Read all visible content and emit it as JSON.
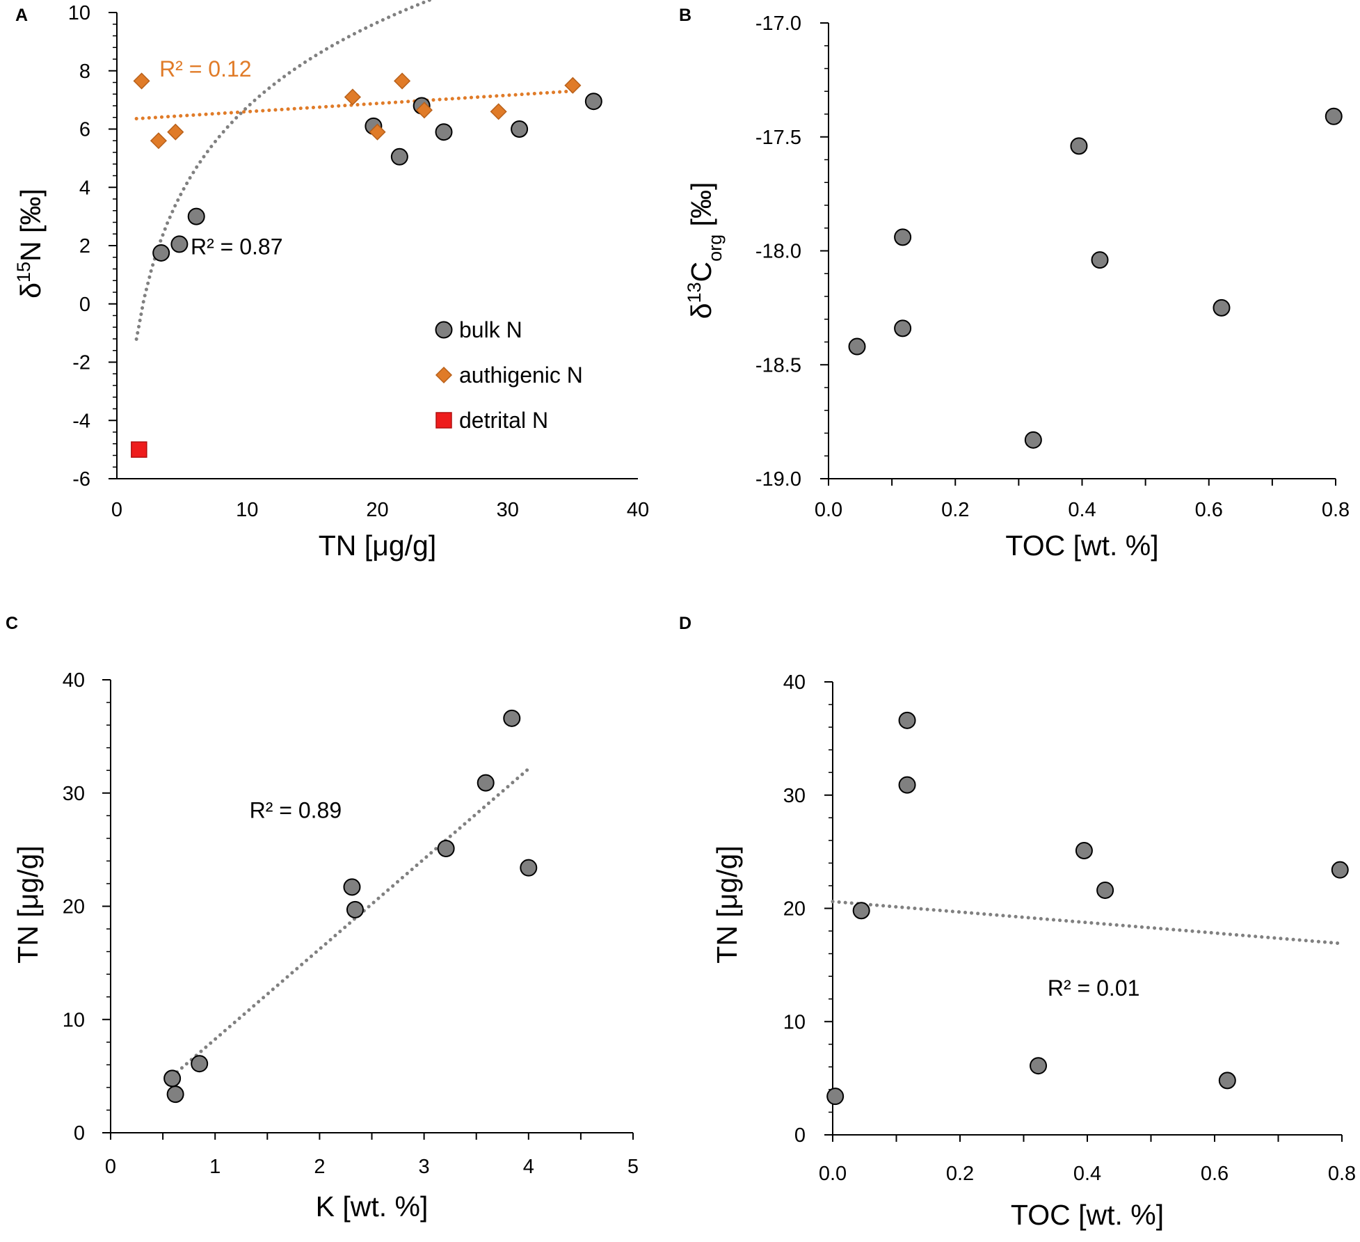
{
  "chart_data": [
    {
      "panel_label": "A",
      "type": "scatter",
      "xlabel": "TN [μg/g]",
      "ylabel": {
        "prefix": "δ",
        "sup": "15",
        "main": "N [‰]"
      },
      "xlim": [
        0,
        40
      ],
      "ylim": [
        -6,
        10
      ],
      "xticks": [
        0,
        10,
        20,
        30,
        40
      ],
      "yticks": [
        -6,
        -4,
        -2,
        0,
        2,
        4,
        6,
        8,
        10
      ],
      "xtick_labels": [
        "0",
        "10",
        "20",
        "30",
        "40"
      ],
      "ytick_labels": [
        "-6",
        "-4",
        "-2",
        "0",
        "2",
        "4",
        "6",
        "8",
        "10"
      ],
      "grid": false,
      "legend_position": "bottom-right",
      "series": [
        {
          "name": "bulk N",
          "marker": "circle",
          "color": "#808080",
          "points": [
            [
              3.4,
              1.75
            ],
            [
              4.8,
              2.05
            ],
            [
              6.1,
              3.0
            ],
            [
              19.7,
              6.1
            ],
            [
              21.7,
              5.05
            ],
            [
              23.4,
              6.8
            ],
            [
              25.1,
              5.9
            ],
            [
              30.9,
              6.0
            ],
            [
              36.6,
              6.95
            ]
          ]
        },
        {
          "name": "authigenic N",
          "marker": "diamond",
          "color": "#e07b28",
          "points": [
            [
              1.9,
              7.65
            ],
            [
              3.2,
              5.6
            ],
            [
              4.5,
              5.9
            ],
            [
              18.1,
              7.1
            ],
            [
              20.0,
              5.9
            ],
            [
              21.9,
              7.65
            ],
            [
              23.6,
              6.65
            ],
            [
              29.3,
              6.6
            ],
            [
              35.0,
              7.5
            ]
          ]
        },
        {
          "name": "detrital N",
          "marker": "square",
          "color": "#ee1c1c",
          "points": [
            [
              1.7,
              -5.0
            ]
          ]
        }
      ],
      "trendlines": [
        {
          "kind": "log",
          "a": 4.196,
          "b": 2.91,
          "x_range": [
            1.5,
            36.6
          ],
          "color": "#808080",
          "label": "R² = 0.87",
          "label_at": [
            9.2,
            1.7
          ]
        },
        {
          "kind": "linear",
          "slope": 0.0282,
          "intercept": 6.315,
          "x_range": [
            1.5,
            35.0
          ],
          "color": "#e07b28",
          "label": "R² = 0.12",
          "label_at": [
            6.8,
            7.8
          ]
        }
      ]
    },
    {
      "panel_label": "B",
      "type": "scatter",
      "xlabel": "TOC [wt. %]",
      "ylabel": {
        "prefix": "δ",
        "sup": "13",
        "main": "C",
        "sub": "org",
        "suffix": " [‰]"
      },
      "xlim": [
        0,
        0.8
      ],
      "ylim": [
        -19.0,
        -17.0
      ],
      "xticks": [
        0,
        0.1,
        0.2,
        0.3,
        0.4,
        0.5,
        0.6,
        0.7,
        0.8
      ],
      "yticks": [
        -19.0,
        -18.5,
        -18.0,
        -17.5,
        -17.0
      ],
      "xtick_labels": [
        "0.0",
        "",
        "0.2",
        "",
        "0.4",
        "",
        "0.6",
        "",
        "0.8"
      ],
      "ytick_labels": [
        "-19.0",
        "-18.5",
        "-18.0",
        "-17.5",
        "-17.0"
      ],
      "grid": false,
      "series": [
        {
          "name": "samples",
          "marker": "circle",
          "color": "#808080",
          "points": [
            [
              0.045,
              -18.42
            ],
            [
              0.117,
              -17.94
            ],
            [
              0.117,
              -18.34
            ],
            [
              0.323,
              -18.83
            ],
            [
              0.395,
              -17.54
            ],
            [
              0.428,
              -18.04
            ],
            [
              0.62,
              -18.25
            ],
            [
              0.797,
              -17.41
            ]
          ]
        }
      ],
      "trendlines": []
    },
    {
      "panel_label": "C",
      "type": "scatter",
      "xlabel": "K [wt. %]",
      "ylabel": {
        "main": "TN [μg/g]"
      },
      "xlim": [
        0,
        5
      ],
      "ylim": [
        0,
        40
      ],
      "xticks": [
        0,
        0.5,
        1,
        1.5,
        2,
        2.5,
        3,
        3.5,
        4,
        4.5,
        5
      ],
      "yticks": [
        0,
        10,
        20,
        30,
        40
      ],
      "xtick_labels": [
        "0",
        "",
        "1",
        "",
        "2",
        "",
        "3",
        "",
        "4",
        "",
        "5"
      ],
      "ytick_labels": [
        "0",
        "10",
        "20",
        "30",
        "40"
      ],
      "grid": false,
      "series": [
        {
          "name": "samples",
          "marker": "circle",
          "color": "#808080",
          "points": [
            [
              0.59,
              4.8
            ],
            [
              0.62,
              3.4
            ],
            [
              0.85,
              6.1
            ],
            [
              2.31,
              21.7
            ],
            [
              2.34,
              19.7
            ],
            [
              3.21,
              25.1
            ],
            [
              3.59,
              30.9
            ],
            [
              3.84,
              36.6
            ],
            [
              4.0,
              23.4
            ]
          ]
        }
      ],
      "trendlines": [
        {
          "kind": "linear",
          "slope": 7.96,
          "intercept": 0.3,
          "x_range": [
            0.59,
            4.0
          ],
          "color": "#808080",
          "label": "R² = 0.89",
          "label_at": [
            1.77,
            27.8
          ]
        }
      ]
    },
    {
      "panel_label": "D",
      "type": "scatter",
      "xlabel": "TOC [wt. %]",
      "ylabel": {
        "main": "TN [μg/g]"
      },
      "xlim": [
        0,
        0.8
      ],
      "ylim": [
        0,
        40
      ],
      "xticks": [
        0,
        0.1,
        0.2,
        0.3,
        0.4,
        0.5,
        0.6,
        0.7,
        0.8
      ],
      "yticks": [
        0,
        10,
        20,
        30,
        40
      ],
      "xtick_labels": [
        "0.0",
        "",
        "0.2",
        "",
        "0.4",
        "",
        "0.6",
        "",
        "0.8"
      ],
      "ytick_labels": [
        "0",
        "10",
        "20",
        "30",
        "40"
      ],
      "grid": false,
      "series": [
        {
          "name": "samples",
          "marker": "circle",
          "color": "#808080",
          "points": [
            [
              0.004,
              3.4
            ],
            [
              0.045,
              19.8
            ],
            [
              0.117,
              36.6
            ],
            [
              0.117,
              30.9
            ],
            [
              0.323,
              6.1
            ],
            [
              0.395,
              25.1
            ],
            [
              0.428,
              21.6
            ],
            [
              0.62,
              4.8
            ],
            [
              0.797,
              23.4
            ]
          ]
        }
      ],
      "trendlines": [
        {
          "kind": "linear",
          "slope": -4.63,
          "intercept": 20.6,
          "x_range": [
            0.0,
            0.8
          ],
          "color": "#808080",
          "label": "R² = 0.01",
          "label_at": [
            0.41,
            12.3
          ]
        }
      ]
    }
  ]
}
